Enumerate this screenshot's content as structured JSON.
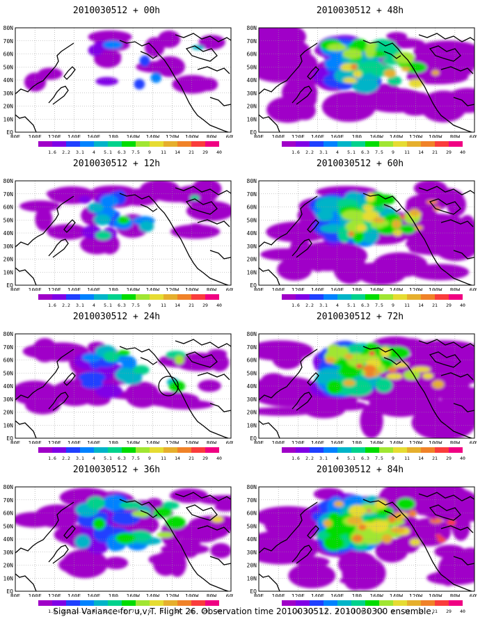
{
  "caption": "Signal Variance for u,v,T. Flight 26. Observation time 2010030512. 2010030300 ensemble.",
  "lat_labels": [
    "80N",
    "70N",
    "60N",
    "50N",
    "40N",
    "30N",
    "20N",
    "10N",
    "EQ"
  ],
  "lon_labels": [
    "80E",
    "100E",
    "120E",
    "140E",
    "160E",
    "180",
    "160W",
    "140W",
    "120W",
    "100W",
    "80W",
    "60W"
  ],
  "colorbar": {
    "levels": [
      "1.6",
      "2.2",
      "3.1",
      "4",
      "5.1",
      "6.3",
      "7.5",
      "9",
      "11",
      "14",
      "21",
      "29",
      "40"
    ],
    "colors": [
      "#a000c8",
      "#8000e6",
      "#2040ff",
      "#0082ff",
      "#00b4c8",
      "#00d28c",
      "#00dc00",
      "#a0e632",
      "#e6dc32",
      "#e6af2d",
      "#f08228",
      "#fa3c3c",
      "#f00082"
    ]
  },
  "panels": [
    {
      "id": "p00",
      "title": "2010030512 + 00h",
      "intensity": 0.15,
      "circle": false
    },
    {
      "id": "p48",
      "title": "2010030512 + 48h",
      "intensity": 0.75,
      "circle": false
    },
    {
      "id": "p12",
      "title": "2010030512 + 12h",
      "intensity": 0.3,
      "circle": false
    },
    {
      "id": "p60",
      "title": "2010030512 + 60h",
      "intensity": 0.85,
      "circle": false
    },
    {
      "id": "p24",
      "title": "2010030512 + 24h",
      "intensity": 0.45,
      "circle": true
    },
    {
      "id": "p72",
      "title": "2010030512 + 72h",
      "intensity": 0.92,
      "circle": false
    },
    {
      "id": "p36",
      "title": "2010030512 + 36h",
      "intensity": 0.6,
      "circle": false
    },
    {
      "id": "p84",
      "title": "2010030512 + 84h",
      "intensity": 1.0,
      "circle": false
    }
  ]
}
